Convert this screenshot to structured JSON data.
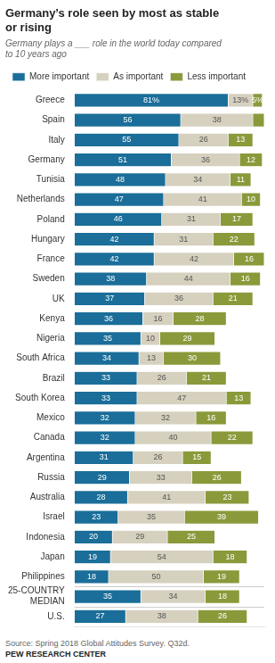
{
  "chart_data": {
    "type": "bar",
    "orientation": "horizontal",
    "stacked": true,
    "title": "Germany’s role seen by most as stable\nor rising",
    "subtitle": "Germany plays a ___ role in the world today compared\nto 10 years ago",
    "annotations": [
      "Source: Spring 2018 Global Attitudes Survey. Q32d.",
      "PEW RESEARCH CENTER"
    ],
    "categories": [
      "Greece",
      "Spain",
      "Italy",
      "Germany",
      "Tunisia",
      "Netherlands",
      "Poland",
      "Hungary",
      "France",
      "Sweden",
      "UK",
      "Kenya",
      "Nigeria",
      "South Africa",
      "Brazil",
      "South Korea",
      "Mexico",
      "Canada",
      "Argentina",
      "Russia",
      "Australia",
      "Israel",
      "Indonesia",
      "Japan",
      "Philippines",
      "25-COUNTRY\nMEDIAN",
      "U.S."
    ],
    "series": [
      {
        "name": "More important",
        "color": "#1a6e99",
        "values": [
          81,
          56,
          55,
          51,
          48,
          47,
          46,
          42,
          42,
          38,
          37,
          36,
          35,
          34,
          33,
          33,
          32,
          32,
          31,
          29,
          28,
          23,
          20,
          19,
          18,
          35,
          27
        ],
        "value_labels": [
          "81%",
          "56",
          "55",
          "51",
          "48",
          "47",
          "46",
          "42",
          "42",
          "38",
          "37",
          "36",
          "35",
          "34",
          "33",
          "33",
          "32",
          "32",
          "31",
          "29",
          "28",
          "23",
          "20",
          "19",
          "18",
          "35",
          "27"
        ]
      },
      {
        "name": "As important",
        "color": "#d6d0be",
        "values": [
          13,
          38,
          26,
          36,
          34,
          41,
          31,
          31,
          42,
          44,
          36,
          16,
          10,
          13,
          26,
          47,
          32,
          40,
          26,
          33,
          41,
          35,
          29,
          54,
          50,
          34,
          38
        ],
        "value_labels": [
          "13%",
          "38",
          "26",
          "36",
          "34",
          "41",
          "31",
          "31",
          "42",
          "44",
          "36",
          "16",
          "10",
          "13",
          "26",
          "47",
          "32",
          "40",
          "26",
          "33",
          "41",
          "35",
          "29",
          "54",
          "50",
          "34",
          "38"
        ]
      },
      {
        "name": "Less important",
        "color": "#8a9a3b",
        "values": [
          5,
          6,
          13,
          12,
          11,
          10,
          17,
          22,
          16,
          16,
          21,
          28,
          29,
          30,
          21,
          13,
          16,
          22,
          15,
          26,
          23,
          39,
          25,
          18,
          19,
          18,
          26
        ],
        "value_labels": [
          "5%",
          null,
          "13",
          "12",
          "11",
          "10",
          "17",
          "22",
          "16",
          "16",
          "21",
          "28",
          "29",
          "30",
          "21",
          "13",
          "16",
          "22",
          "15",
          "26",
          "23",
          "39",
          "25",
          "18",
          "19",
          "18",
          "26"
        ]
      }
    ],
    "xlim": [
      0,
      100
    ],
    "data_labels": true,
    "tick_labels": "y",
    "grid": false,
    "legend": "top"
  }
}
